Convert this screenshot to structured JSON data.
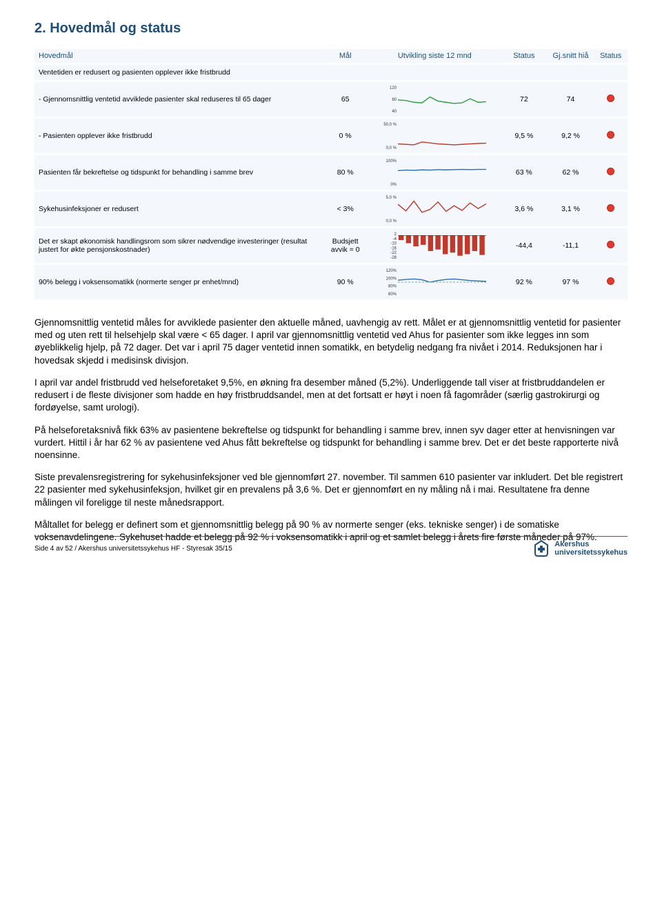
{
  "page": {
    "title": "2. Hovedmål og status",
    "footer": "Side 4 av 52 / Akershus universitetssykehus HF - Styresak 35/15",
    "logo_line1": "Akershus",
    "logo_line2": "universitetssykehus"
  },
  "table": {
    "headers": {
      "hovedmal": "Hovedmål",
      "mal": "Mål",
      "utvikling": "Utvikling siste 12 mnd",
      "status": "Status",
      "gjsnitt": "Gj.snitt hiå",
      "status2": "Status"
    },
    "rows": [
      {
        "label": "Ventetiden er redusert og pasienten opplever ikke fristbrudd",
        "mal": "",
        "spark": null,
        "stat1": "",
        "stat2": "",
        "dot": false,
        "indent": false,
        "sep": true
      },
      {
        "label": " - Gjennomsnittlig ventetid avviklede pasienter skal reduseres til 65 dager",
        "mal": "65",
        "spark": {
          "type": "line",
          "color": "#2e9e3f",
          "min": 40,
          "max": 120,
          "ticks": [
            "120",
            "80",
            "40"
          ],
          "values": [
            78,
            76,
            70,
            68,
            88,
            74,
            70,
            66,
            68,
            82,
            70,
            72
          ]
        },
        "stat1": "72",
        "stat2": "74",
        "dot": true,
        "indent": true,
        "sep": true
      },
      {
        "label": " - Pasienten opplever ikke fristbrudd",
        "mal": "0 %",
        "spark": {
          "type": "line",
          "color": "#c0392b",
          "min": 0,
          "max": 50,
          "ticks": [
            "50,0 %",
            "0,0 %"
          ],
          "values": [
            8,
            7,
            6,
            12,
            10,
            8,
            7,
            6,
            7,
            8,
            9,
            9.5
          ]
        },
        "stat1": "9,5 %",
        "stat2": "9,2 %",
        "dot": true,
        "indent": true,
        "sep": true
      },
      {
        "label": "Pasienten får bekreftelse og tidspunkt for behandling i samme brev",
        "mal": "80 %",
        "spark": {
          "type": "line",
          "color": "#2b6cb0",
          "min": 0,
          "max": 100,
          "ticks": [
            "100%",
            "0%"
          ],
          "values": [
            58,
            60,
            59,
            61,
            60,
            62,
            61,
            62,
            63,
            62,
            63,
            63
          ]
        },
        "stat1": "63 %",
        "stat2": "62 %",
        "dot": true,
        "indent": false,
        "sep": true
      },
      {
        "label": "Sykehusinfeksjoner er redusert",
        "mal": "< 3%",
        "spark": {
          "type": "line",
          "color": "#c0392b",
          "min": 0,
          "max": 5,
          "ticks": [
            "5,0 %",
            "0,0 %"
          ],
          "values": [
            3.5,
            2.1,
            4.2,
            1.8,
            2.4,
            4.0,
            2.0,
            3.2,
            2.2,
            3.8,
            2.6,
            3.6
          ]
        },
        "stat1": "3,6 %",
        "stat2": "3,1 %",
        "dot": true,
        "indent": false,
        "sep": true
      },
      {
        "label": "Det er skapt økonomisk handlingsrom som sikrer nødvendige investeringer (resultat justert for økte pensjonskostnader)",
        "mal": "Budsjett avvik = 0",
        "spark": {
          "type": "bar",
          "color": "#c0392b",
          "min": -28,
          "max": 2,
          "ticks": [
            "2",
            "-4",
            "-10",
            "-16",
            "-22",
            "-28"
          ],
          "values": [
            -6,
            -10,
            -14,
            -12,
            -20,
            -18,
            -24,
            -22,
            -26,
            -24,
            -20,
            -25
          ]
        },
        "stat1": "-44,4",
        "stat2": "-11,1",
        "dot": true,
        "indent": false,
        "sep": true
      },
      {
        "label": "90% belegg i voksensomatikk (normerte senger pr enhet/mnd)",
        "mal": "90 %",
        "spark": {
          "type": "line",
          "color": "#2b6cb0",
          "min": 60,
          "max": 120,
          "ticks": [
            "120%",
            "100%",
            "80%",
            "60%"
          ],
          "values": [
            95,
            97,
            98,
            96,
            90,
            94,
            97,
            98,
            96,
            94,
            93,
            92
          ],
          "dash": true
        },
        "stat1": "92 %",
        "stat2": "97 %",
        "dot": true,
        "indent": false,
        "sep": true
      }
    ]
  },
  "paragraphs": [
    "Gjennomsnittlig ventetid måles for avviklede pasienter den aktuelle måned, uavhengig av rett. Målet er at gjennomsnittlig ventetid for pasienter med og uten rett til helsehjelp skal være < 65 dager. I april var gjennomsnittlig ventetid ved Ahus for pasienter som ikke legges inn som øyeblikkelig hjelp, på 72 dager. Det var i april 75 dager ventetid innen somatikk, en betydelig nedgang fra nivået i 2014. Reduksjonen har i hovedsak skjedd i medisinsk divisjon.",
    "I april var andel fristbrudd ved helseforetaket 9,5%, en økning fra desember måned (5,2%). Underliggende tall viser at fristbruddandelen er redusert i de fleste divisjoner som hadde en høy fristbruddsandel, men at det fortsatt er høyt i noen få fagområder (særlig gastrokirurgi og fordøyelse, samt urologi).",
    "På helseforetaksnivå fikk 63% av pasientene bekreftelse og tidspunkt for behandling i samme brev, innen syv dager etter at henvisningen var vurdert. Hittil i år har 62 % av pasientene ved Ahus fått bekreftelse og tidspunkt for behandling i samme brev. Det er det beste rapporterte nivå noensinne.",
    "Siste prevalensregistrering for sykehusinfeksjoner ved ble gjennomført 27. november. Til sammen 610 pasienter var inkludert. Det ble registrert 22 pasienter med sykehusinfeksjon, hvilket gir en prevalens på 3,6 %. Det er gjennomført en ny måling nå i mai. Resultatene fra denne målingen vil foreligge til neste månedsrapport.",
    "Måltallet for belegg er definert som et gjennomsnittlig belegg på 90 % av normerte senger (eks. tekniske senger) i de somatiske voksenavdelingene. Sykehuset hadde et belegg på 92 % i voksensomatikk i april og et samlet belegg i årets fire første måneder på 97%."
  ]
}
